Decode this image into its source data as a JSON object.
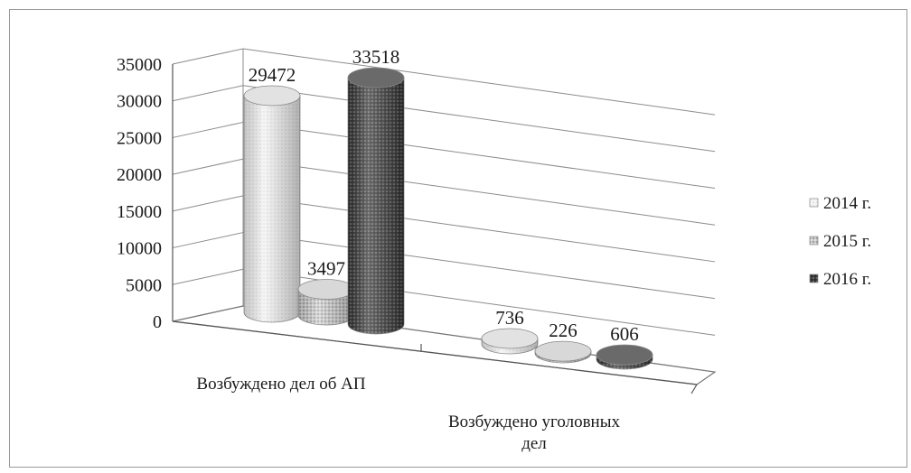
{
  "chart_data": {
    "type": "bar",
    "style": "3d-cylinder",
    "categories": [
      "Возбуждено дел об АП",
      "Возбуждено уголовных дел"
    ],
    "series": [
      {
        "name": "2014 г.",
        "values": [
          29472,
          736
        ],
        "color": "#f4f4f4",
        "pattern": "light"
      },
      {
        "name": "2015 г.",
        "values": [
          3497,
          226
        ],
        "color": "#b9b9b9",
        "pattern": "dots"
      },
      {
        "name": "2016 г.",
        "values": [
          33518,
          606
        ],
        "color": "#3c3c3c",
        "pattern": "dark"
      }
    ],
    "yticks": [
      "0",
      "5000",
      "10000",
      "15000",
      "20000",
      "25000",
      "30000",
      "35000"
    ],
    "ylim": [
      0,
      35000
    ],
    "grid": true,
    "legend": "right"
  }
}
